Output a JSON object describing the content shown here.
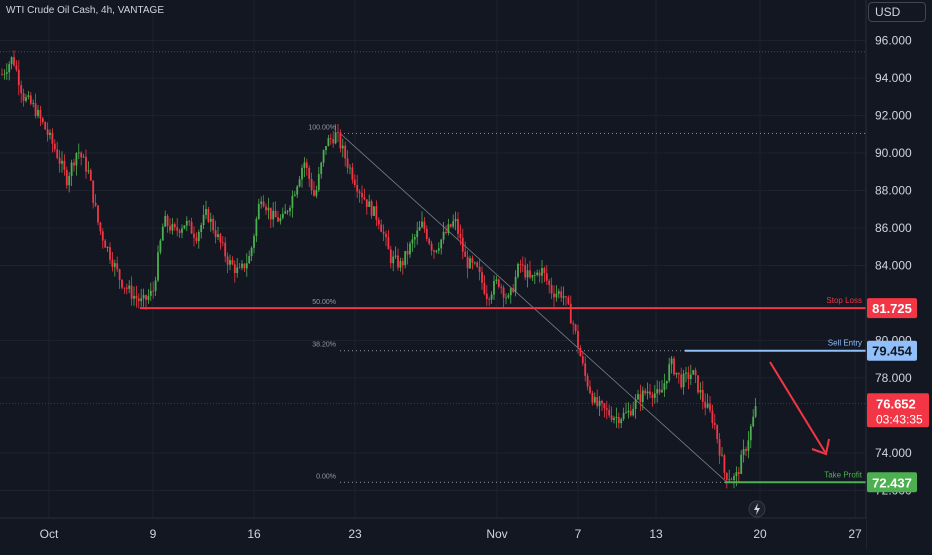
{
  "header": {
    "symbol_title": "WTI Crude Oil Cash, 4h, VANTAGE",
    "currency": "USD"
  },
  "chart_data": {
    "type": "candlestick",
    "title": "WTI Crude Oil Cash, 4h, VANTAGE",
    "y_ticks": [
      "96.000",
      "94.000",
      "92.000",
      "90.000",
      "88.000",
      "86.000",
      "84.000",
      "80.000",
      "78.000",
      "74.000",
      "72.000"
    ],
    "y_tick_values": [
      96,
      94,
      92,
      90,
      88,
      86,
      84,
      80,
      78,
      74,
      72
    ],
    "x_ticks": [
      "Oct",
      "9",
      "16",
      "23",
      "Nov",
      "7",
      "13",
      "20",
      "27"
    ],
    "ylim": [
      70.4,
      97.6
    ],
    "grid": true,
    "fib_levels": [
      {
        "label": "100.00%",
        "value": 91.05
      },
      {
        "label": "50.00%",
        "value": 81.725
      },
      {
        "label": "38.20%",
        "value": 79.454
      },
      {
        "label": "0.00%",
        "value": 72.437
      }
    ],
    "levels": [
      {
        "label": "Stop Loss",
        "value_label": "81.725",
        "value": 81.725,
        "color": "#f23645"
      },
      {
        "label": "Sell Entry",
        "value_label": "79.454",
        "value": 79.454,
        "color": "#90bff9"
      },
      {
        "label": "Take Profit",
        "value_label": "72.437",
        "value": 72.437,
        "color": "#4caf50"
      }
    ],
    "current_price": {
      "value_label": "76.652",
      "countdown": "03:43:35",
      "value": 76.652,
      "color": "#f23645"
    },
    "top_reference_level": 95.4,
    "price_path": [
      [
        0,
        94.2
      ],
      [
        0.4,
        95.1
      ],
      [
        0.8,
        93.0
      ],
      [
        1.2,
        92.4
      ],
      [
        1.6,
        91.3
      ],
      [
        2.0,
        90.1
      ],
      [
        2.4,
        88.6
      ],
      [
        2.8,
        90.2
      ],
      [
        3.2,
        89.0
      ],
      [
        3.6,
        86.0
      ],
      [
        4.0,
        84.6
      ],
      [
        4.4,
        83.2
      ],
      [
        4.8,
        82.5
      ],
      [
        5.2,
        82.0
      ],
      [
        5.6,
        82.6
      ],
      [
        6.0,
        86.4
      ],
      [
        6.4,
        85.8
      ],
      [
        6.8,
        86.3
      ],
      [
        7.2,
        85.6
      ],
      [
        7.6,
        86.8
      ],
      [
        8.0,
        85.5
      ],
      [
        8.4,
        84.2
      ],
      [
        8.8,
        83.6
      ],
      [
        9.2,
        84.5
      ],
      [
        9.6,
        87.8
      ],
      [
        10.0,
        86.6
      ],
      [
        10.4,
        86.4
      ],
      [
        10.8,
        87.8
      ],
      [
        11.2,
        89.6
      ],
      [
        11.6,
        87.6
      ],
      [
        12.0,
        90.5
      ],
      [
        12.4,
        91.0
      ],
      [
        12.8,
        89.5
      ],
      [
        13.2,
        88.2
      ],
      [
        13.6,
        87.2
      ],
      [
        14.0,
        86.4
      ],
      [
        14.4,
        84.4
      ],
      [
        14.8,
        84.0
      ],
      [
        15.2,
        85.2
      ],
      [
        15.6,
        86.2
      ],
      [
        16.0,
        84.8
      ],
      [
        16.4,
        85.6
      ],
      [
        16.8,
        86.4
      ],
      [
        17.2,
        84.2
      ],
      [
        17.6,
        83.8
      ],
      [
        18.0,
        82.4
      ],
      [
        18.4,
        83.2
      ],
      [
        18.8,
        82.1
      ],
      [
        19.2,
        84.1
      ],
      [
        19.6,
        83.2
      ],
      [
        20.0,
        83.8
      ],
      [
        20.4,
        82.6
      ],
      [
        20.8,
        82.5
      ],
      [
        21.2,
        80.8
      ],
      [
        21.6,
        78.2
      ],
      [
        22.0,
        76.6
      ],
      [
        22.4,
        76.2
      ],
      [
        22.8,
        75.9
      ],
      [
        23.2,
        76.1
      ],
      [
        23.6,
        76.9
      ],
      [
        24.0,
        77.4
      ],
      [
        24.4,
        77.0
      ],
      [
        24.8,
        78.8
      ],
      [
        25.2,
        77.8
      ],
      [
        25.6,
        78.3
      ],
      [
        26.0,
        76.8
      ],
      [
        26.4,
        75.7
      ],
      [
        26.8,
        72.9
      ],
      [
        27.2,
        72.6
      ],
      [
        27.6,
        74.4
      ],
      [
        28.0,
        76.6
      ]
    ]
  }
}
